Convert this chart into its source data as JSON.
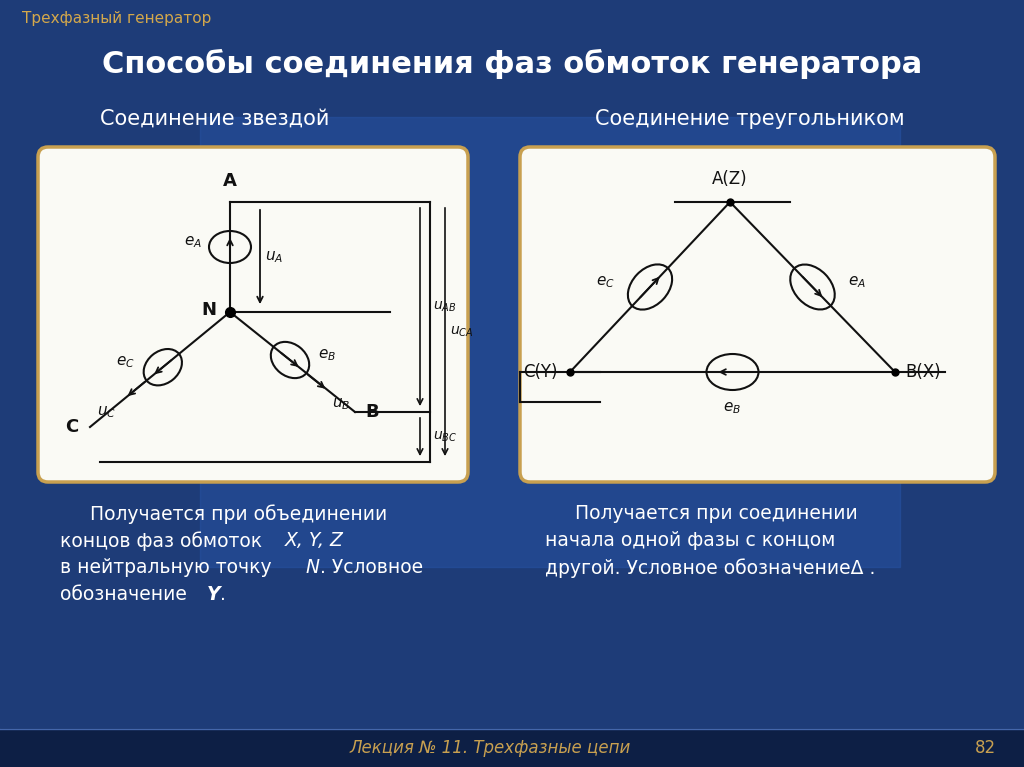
{
  "bg_top_color": "#1e3c78",
  "bg_bottom_color": "#2a52a0",
  "footer_bar_color": "#0d1f45",
  "slide_title": "Способы соединения фаз обмоток генератора",
  "slide_subtitle": "Трехфазный генератор",
  "footer_text": "Лекция № 11. Трехфазные цепи",
  "footer_num": "82",
  "left_title": "Соединение звездой",
  "right_title": "Соединение треугольником",
  "box_color": "#fafaf5",
  "box_edge": "#c8a050",
  "line_color": "#111111",
  "text_color": "#ffffff",
  "gold_color": "#c8a050",
  "subtitle_color": "#d4a84b"
}
